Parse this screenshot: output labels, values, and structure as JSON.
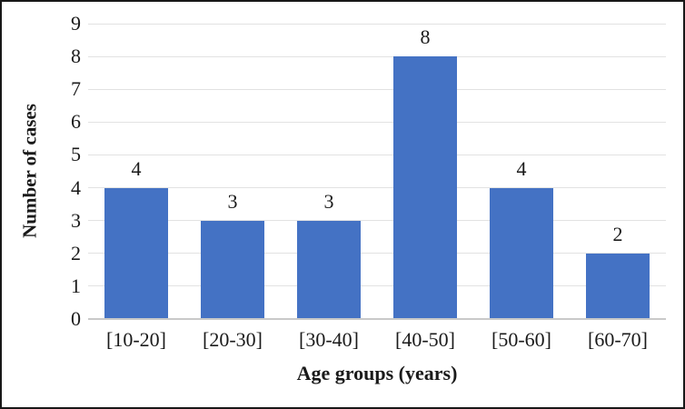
{
  "chart_data": {
    "type": "bar",
    "title": "",
    "categories": [
      "[10-20]",
      "[20-30]",
      "[30-40]",
      "[40-50]",
      "[50-60]",
      "[60-70]"
    ],
    "values": [
      4,
      3,
      3,
      8,
      4,
      2
    ],
    "data_labels": [
      "4",
      "3",
      "3",
      "8",
      "4",
      "2"
    ],
    "xlabel": "Age groups (years)",
    "ylabel": "Number of cases",
    "ylim": [
      0,
      9
    ],
    "ytick_step": 1,
    "ytick_labels": [
      "0",
      "1",
      "2",
      "3",
      "4",
      "5",
      "6",
      "7",
      "8",
      "9"
    ],
    "grid": "horizontal",
    "legend": "none",
    "colors": {
      "bar_fill": "#4472c4",
      "gridline": "#e2e2e2",
      "axis_line": "#c9c9c9",
      "text": "#1a1a1a",
      "frame_border": "#181818",
      "background": "#ffffff"
    }
  }
}
